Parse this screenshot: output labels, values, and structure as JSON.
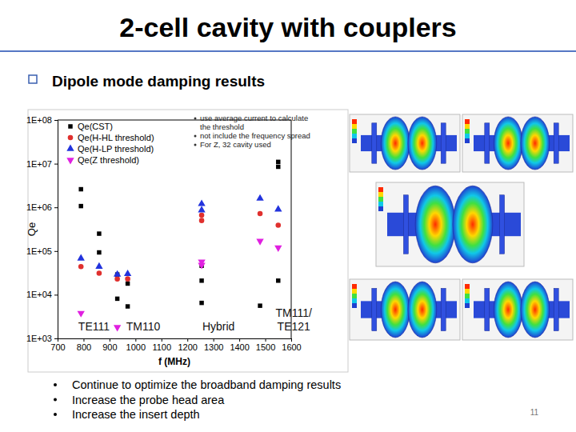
{
  "slide": {
    "title": "2-cell cavity with couplers",
    "heading": "Dipole mode damping results",
    "bullets": [
      "Continue to optimize the broadband damping results",
      "Increase the probe head area",
      "Increase the insert depth"
    ],
    "page_number": "11"
  },
  "chart_data": {
    "type": "scatter",
    "xlabel": "f (MHz)",
    "ylabel": "Qe",
    "log": "y",
    "legend": "upper left",
    "xlim": [
      700,
      1600
    ],
    "xticks": [
      700,
      800,
      900,
      1000,
      1100,
      1200,
      1300,
      1400,
      1500,
      1600
    ],
    "ylim": [
      1000,
      100000000
    ],
    "yticks": [
      {
        "value": 1000,
        "label": "1E+03"
      },
      {
        "value": 10000,
        "label": "1E+04"
      },
      {
        "value": 100000,
        "label": "1E+05"
      },
      {
        "value": 1000000,
        "label": "1E+06"
      },
      {
        "value": 10000000,
        "label": "1E+07"
      },
      {
        "value": 100000000,
        "label": "1E+08"
      }
    ],
    "notes": [
      "use average current to calculate the threshold",
      "not include the frequency spread",
      "For Z, 32 cavity used"
    ],
    "annotations": [
      {
        "text": "TE111",
        "x": 840
      },
      {
        "text": "TM110",
        "x": 1030
      },
      {
        "text": "Hybrid",
        "x": 1320
      },
      {
        "text": "TM111/\nTE121",
        "x": 1610
      }
    ],
    "series": [
      {
        "name": "Qe(CST)",
        "color": "#000000",
        "marker": "square",
        "x": [
          790,
          790,
          860,
          860,
          930,
          930,
          970,
          970,
          1255,
          1255,
          1255,
          1480,
          1550,
          1550,
          1550
        ],
        "values": [
          2600000,
          1070000,
          250000,
          93000,
          29000,
          8100,
          18000,
          5400,
          46000,
          21000,
          6500,
          5600,
          11000000,
          8500000,
          21000
        ]
      },
      {
        "name": "Qe(H-HL threshold)",
        "color": "#e0302e",
        "marker": "circle",
        "x": [
          790,
          860,
          930,
          970,
          1255,
          1255,
          1480,
          1550
        ],
        "values": [
          44000,
          31000,
          23000,
          23000,
          660000,
          500000,
          720000,
          390000
        ]
      },
      {
        "name": "Qe(H-LP threshold)",
        "color": "#2233dd",
        "marker": "triangle-up",
        "x": [
          790,
          860,
          930,
          970,
          1255,
          1255,
          1480,
          1550
        ],
        "values": [
          68000,
          44000,
          29000,
          30000,
          1200000,
          860000,
          1600000,
          900000
        ]
      },
      {
        "name": "Qe(Z threshold)",
        "color": "#e020e0",
        "marker": "triangle-down",
        "x": [
          790,
          930,
          1255,
          1255,
          1480,
          1550
        ],
        "values": [
          3800,
          1800,
          57000,
          48000,
          170000,
          120000
        ]
      }
    ]
  }
}
